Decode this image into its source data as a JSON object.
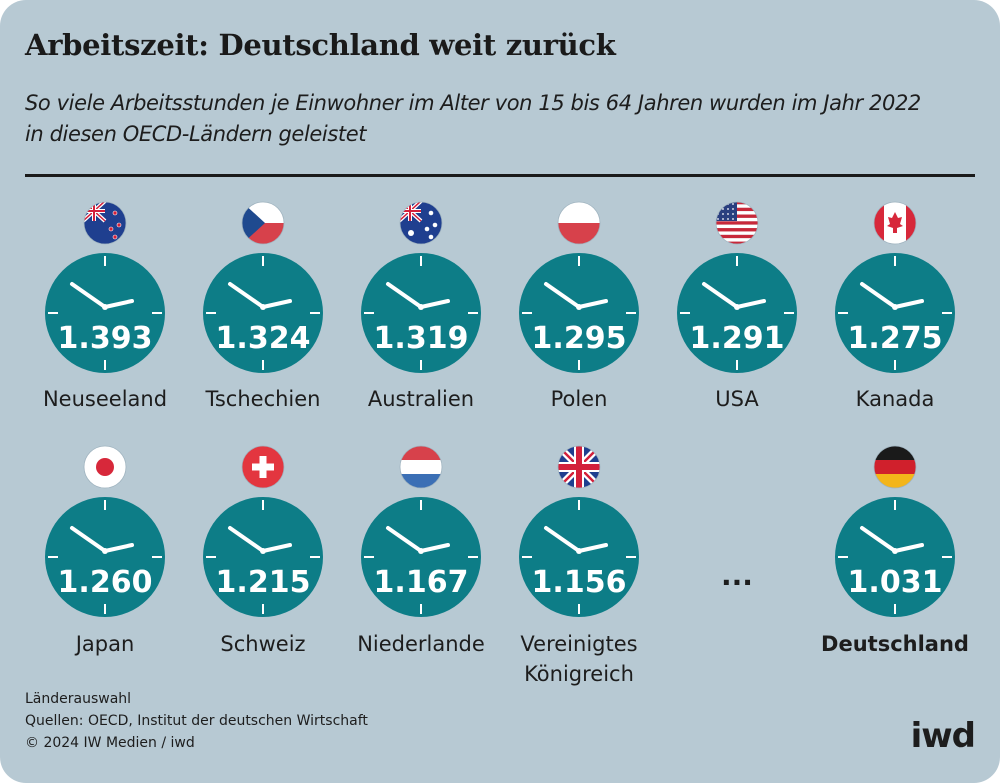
{
  "header": {
    "title": "Arbeitszeit: Deutschland weit zurück",
    "subtitle": "So viele Arbeitsstunden je Einwohner im Alter von 15 bis 64 Jahren wurden im Jahr 2022 in diesen OECD-Ländern geleistet"
  },
  "chart_data": {
    "type": "table",
    "unit": "",
    "title": "Arbeitszeit: Deutschland weit zurück",
    "rows": [
      {
        "country": "Neuseeland",
        "value": 1393,
        "label": "1.393",
        "flag": "new-zealand-flag-icon"
      },
      {
        "country": "Tschechien",
        "value": 1324,
        "label": "1.324",
        "flag": "czech-flag-icon"
      },
      {
        "country": "Australien",
        "value": 1319,
        "label": "1.319",
        "flag": "australia-flag-icon"
      },
      {
        "country": "Polen",
        "value": 1295,
        "label": "1.295",
        "flag": "poland-flag-icon"
      },
      {
        "country": "USA",
        "value": 1291,
        "label": "1.291",
        "flag": "usa-flag-icon"
      },
      {
        "country": "Kanada",
        "value": 1275,
        "label": "1.275",
        "flag": "canada-flag-icon"
      },
      {
        "country": "Japan",
        "value": 1260,
        "label": "1.260",
        "flag": "japan-flag-icon"
      },
      {
        "country": "Schweiz",
        "value": 1215,
        "label": "1.215",
        "flag": "switzerland-flag-icon"
      },
      {
        "country": "Niederlande",
        "value": 1167,
        "label": "1.167",
        "flag": "netherlands-flag-icon"
      },
      {
        "country": "Vereinigtes Königreich",
        "value": 1156,
        "label": "1.156",
        "flag": "uk-flag-icon"
      },
      {
        "country": "Deutschland",
        "value": 1031,
        "label": "1.031",
        "flag": "germany-flag-icon",
        "highlight": true
      }
    ],
    "ellipsis": "...",
    "clock_color": "#0d7d87",
    "background_color": "#b7c9d3"
  },
  "footer": {
    "note": "Länderauswahl",
    "sources": "Quellen: OECD, Institut der deutschen Wirtschaft",
    "copyright": "© 2024 IW Medien / iwd",
    "logo": "iwd"
  }
}
